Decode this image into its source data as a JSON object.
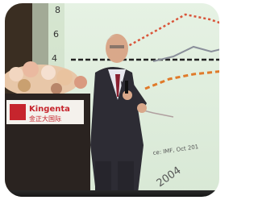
{
  "photo": {
    "slide": {
      "axis_labels": [
        "8",
        "6",
        "4"
      ],
      "source_note": "ce: IMF, Oct 201",
      "year_label": "2004"
    },
    "podium": {
      "brand": "Kingenta",
      "brand_cn": "金正大国际"
    }
  }
}
